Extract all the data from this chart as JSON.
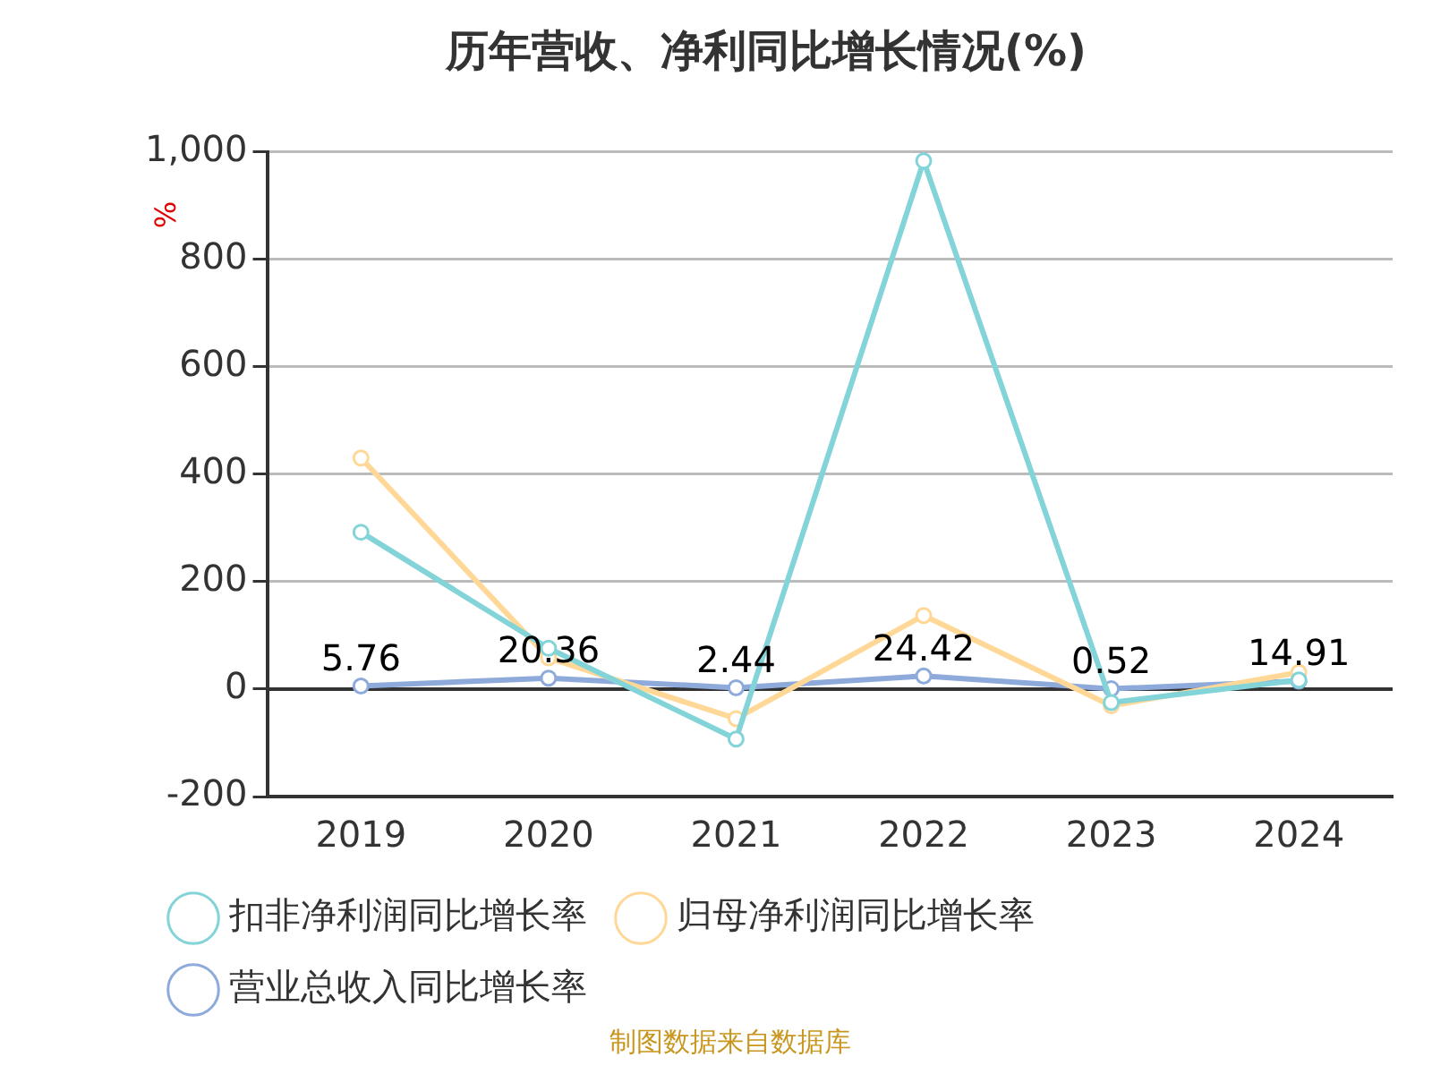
{
  "chart_data": {
    "type": "line",
    "title": "历年营收、净利同比增长情况(%)",
    "ylabel": "%",
    "categories": [
      "2019",
      "2020",
      "2021",
      "2022",
      "2023",
      "2024"
    ],
    "series": [
      {
        "name": "营业总收入同比增长率",
        "color": "#8eaadb",
        "values": [
          5.76,
          20.36,
          2.44,
          24.42,
          0.52,
          14.91
        ],
        "value_labels": [
          "5.76",
          "20.36",
          "2.44",
          "24.42",
          "0.52",
          "14.91"
        ]
      },
      {
        "name": "归母净利润同比增长率",
        "color": "#ffd898",
        "values": [
          430,
          58,
          -55,
          137,
          -31,
          31
        ]
      },
      {
        "name": "扣非净利润同比增长率",
        "color": "#83d4d8",
        "values": [
          292,
          76,
          -93,
          983,
          -25,
          17
        ]
      }
    ],
    "ylim": [
      -200,
      1000
    ],
    "yticks": [
      -200,
      0,
      200,
      400,
      600,
      800,
      {
        "value": 1000,
        "label": "1,000"
      }
    ],
    "grid": "y",
    "legend": "bottom",
    "marker": "circle",
    "line_style": "solid",
    "ref_lines": [
      {
        "axis": "y",
        "value": 0,
        "color": "#333333",
        "line_style": "solid"
      }
    ],
    "annotations": [
      "制图数据来自数据库"
    ]
  }
}
